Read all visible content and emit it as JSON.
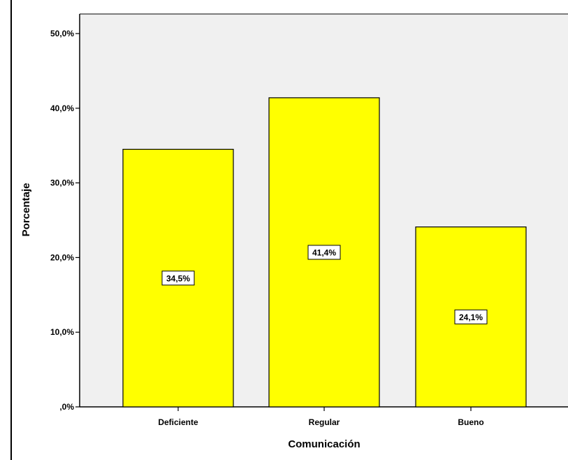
{
  "chart_data": {
    "type": "bar",
    "categories": [
      "Deficiente",
      "Regular",
      "Bueno"
    ],
    "values": [
      34.5,
      41.4,
      24.1
    ],
    "data_labels": [
      "34,5%",
      "41,4%",
      "24,1%"
    ],
    "xlabel": "Comunicación",
    "ylabel": "Porcentaje",
    "ylim": [
      0,
      50
    ],
    "yticks": [
      0,
      10,
      20,
      30,
      40,
      50
    ],
    "ytick_labels": [
      ",0%",
      "10,0%",
      "20,0%",
      "30,0%",
      "40,0%",
      "50,0%"
    ],
    "grid": false,
    "legend": "none",
    "colors": {
      "bar_fill": "#ffff00",
      "plot_background": "#f0f0f0",
      "bar_stroke": "#000000"
    }
  }
}
